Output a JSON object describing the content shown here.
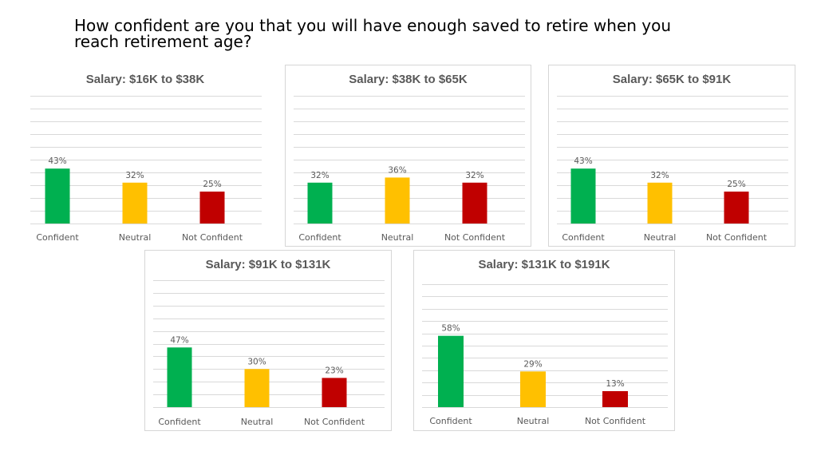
{
  "page": {
    "title": "How confident are you that you will have enough saved to retire when you reach retirement age?"
  },
  "colors": {
    "Confident": "#00b050",
    "Neutral": "#ffc000",
    "Not Confident": "#c00000",
    "gridline": "#d9d9d9",
    "label_text": "#595959"
  },
  "chart_data": [
    {
      "type": "bar",
      "title": "Salary: $16K to $38K",
      "categories": [
        "Confident",
        "Neutral",
        "Not Confident"
      ],
      "values": [
        43,
        32,
        25
      ],
      "data_labels": [
        "43%",
        "32%",
        "25%"
      ],
      "ylim": [
        0,
        100
      ],
      "grid": true,
      "legend": "none"
    },
    {
      "type": "bar",
      "title": "Salary: $38K to $65K",
      "categories": [
        "Confident",
        "Neutral",
        "Not Confident"
      ],
      "values": [
        32,
        36,
        32
      ],
      "data_labels": [
        "32%",
        "36%",
        "32%"
      ],
      "ylim": [
        0,
        100
      ],
      "grid": true,
      "legend": "none"
    },
    {
      "type": "bar",
      "title": "Salary: $65K to $91K",
      "categories": [
        "Confident",
        "Neutral",
        "Not Confident"
      ],
      "values": [
        43,
        32,
        25
      ],
      "data_labels": [
        "43%",
        "32%",
        "25%"
      ],
      "ylim": [
        0,
        100
      ],
      "grid": true,
      "legend": "none"
    },
    {
      "type": "bar",
      "title": "Salary: $91K to $131K",
      "categories": [
        "Confident",
        "Neutral",
        "Not Confident"
      ],
      "values": [
        47,
        30,
        23
      ],
      "data_labels": [
        "47%",
        "30%",
        "23%"
      ],
      "ylim": [
        0,
        100
      ],
      "grid": true,
      "legend": "none"
    },
    {
      "type": "bar",
      "title": "Salary: $131K to $191K",
      "categories": [
        "Confident",
        "Neutral",
        "Not Confident"
      ],
      "values": [
        58,
        29,
        13
      ],
      "data_labels": [
        "58%",
        "29%",
        "13%"
      ],
      "ylim": [
        0,
        100
      ],
      "grid": true,
      "legend": "none"
    }
  ]
}
